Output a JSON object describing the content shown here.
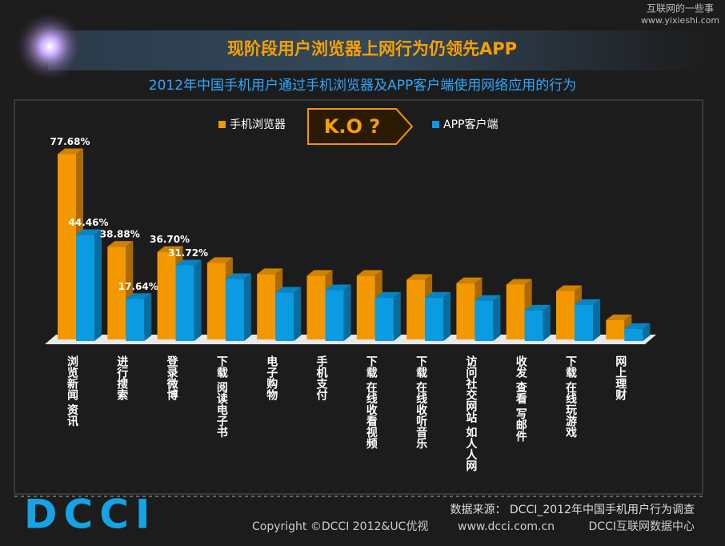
{
  "chart_data": {
    "type": "bar3d",
    "title": "现阶段用户浏览器上网行为仍领先APP",
    "subtitle": "2012年中国手机用户通过手机浏览器及APP客户端使用网络应用的行为",
    "annotation": "K.O ?",
    "categories": [
      "浏览新闻 资讯",
      "进行搜索",
      "登录微博",
      "下载 阅读电子书",
      "电子购物",
      "手机支付",
      "下载 在线收看视频",
      "下载 在线收听音乐",
      "访问社交网站 如人人网",
      "收发 查看 写邮件",
      "下载 在线玩游戏",
      "网上理财"
    ],
    "series": [
      {
        "name": "手机浏览器",
        "color": "#f39800",
        "values": [
          77.68,
          38.88,
          36.7,
          32.1,
          27.4,
          26.7,
          26.7,
          25.0,
          23.6,
          23.0,
          20.3,
          8.1
        ],
        "value_labels": [
          "77.68%",
          "38.88%",
          "36.70%",
          null,
          null,
          null,
          null,
          null,
          null,
          null,
          null,
          null
        ]
      },
      {
        "name": "APP客户端",
        "color": "#0a9be2",
        "values": [
          44.46,
          17.64,
          31.72,
          26.0,
          20.3,
          21.3,
          18.2,
          18.2,
          16.9,
          12.8,
          15.2,
          5.1
        ],
        "value_labels": [
          "44.46%",
          "17.64%",
          "31.72%",
          null,
          null,
          null,
          null,
          null,
          null,
          null,
          null,
          null
        ]
      }
    ]
  },
  "watermark": {
    "name": "互联网的一些事",
    "url": "www.yixieshi.com"
  },
  "footer": {
    "source": "数据来源： DCCI_2012年中国手机用户行为调查",
    "copyright": "Copyright ©DCCI 2012&UC优视",
    "site": "www.dcci.com.cn",
    "org": "DCCI互联网数据中心",
    "logo": "DCCI"
  }
}
